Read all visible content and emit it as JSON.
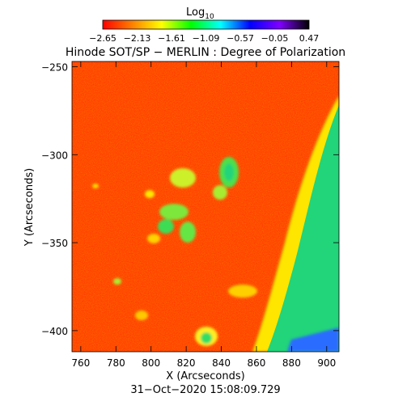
{
  "colorbar": {
    "label_base": "Log",
    "label_sub": "10",
    "ticks": [
      "−2.65",
      "−2.13",
      "−1.61",
      "−1.09",
      "−0.57",
      "−0.05",
      "0.47"
    ],
    "range": [
      -2.65,
      0.47
    ],
    "colors": [
      "#ff0000",
      "#ff8000",
      "#ffff00",
      "#00ff00",
      "#00ffff",
      "#0000ff",
      "#8000ff",
      "#000000"
    ]
  },
  "title": "Hinode SOT/SP − MERLIN : Degree of Polarization",
  "chart_data": {
    "type": "heatmap",
    "xlabel": "X (Arcseconds)",
    "ylabel": "Y (Arcseconds)",
    "xlim": [
      755,
      907
    ],
    "ylim": [
      -412,
      -247
    ],
    "x_ticks": [
      760,
      780,
      800,
      820,
      840,
      860,
      880,
      900
    ],
    "y_ticks": [
      -250,
      -300,
      -350,
      -400
    ],
    "x_tick_labels": [
      "760",
      "780",
      "800",
      "820",
      "840",
      "860",
      "880",
      "900"
    ],
    "y_tick_labels": [
      "−250",
      "−300",
      "−350",
      "−400"
    ],
    "background_color": "#ff2a00",
    "limb_color": "#22d47a"
  },
  "timestamp": "31−Oct−2020 15:08:09.729"
}
